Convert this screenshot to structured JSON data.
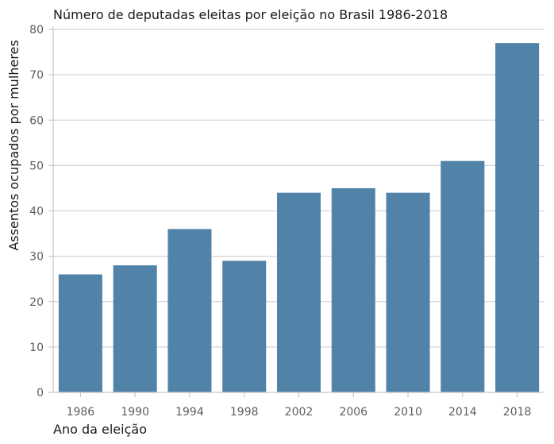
{
  "chart_data": {
    "type": "bar",
    "title": "Número de deputadas eleitas por eleição no Brasil 1986-2018",
    "xlabel": "Ano da eleição",
    "ylabel": "Assentos ocupados por mulheres",
    "categories": [
      "1986",
      "1990",
      "1994",
      "1998",
      "2002",
      "2006",
      "2010",
      "2014",
      "2018"
    ],
    "values": [
      26,
      28,
      36,
      29,
      44,
      45,
      44,
      51,
      77
    ],
    "ylim": [
      0,
      80
    ],
    "yticks": [
      0,
      10,
      20,
      30,
      40,
      50,
      60,
      70,
      80
    ],
    "grid": true,
    "legend": "none",
    "bar_color": "#5183a9",
    "grid_color": "#d4d4d4"
  }
}
